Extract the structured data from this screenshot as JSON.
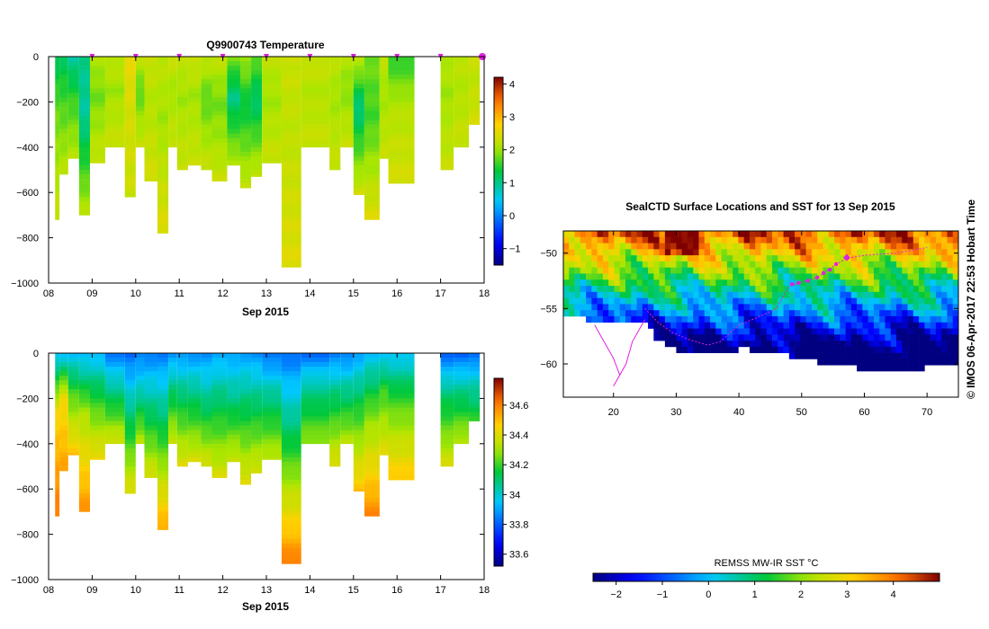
{
  "colors": {
    "marker": "#e020e0",
    "track": "#e020e0",
    "land": "#ffffff",
    "axis": "#000000"
  },
  "credit": "© IMOS 06-Apr-2017 22:53 Hobart Time",
  "chart_data": [
    {
      "id": "temperature",
      "type": "heatmap",
      "title": "Q9900743  Temperature",
      "xlabel": "Sep 2015",
      "ylabel": "",
      "xlim": [
        8,
        18
      ],
      "ylim": [
        -1000,
        0
      ],
      "xticks": [
        "08",
        "09",
        "10",
        "11",
        "12",
        "13",
        "14",
        "15",
        "16",
        "17",
        "18"
      ],
      "yticks": [
        0,
        -200,
        -400,
        -600,
        -800,
        -1000
      ],
      "colorbar": {
        "min": -1.5,
        "max": 4.2,
        "ticks": [
          4,
          3,
          2,
          1,
          0,
          -1
        ]
      },
      "markers_x": [
        9.0,
        10.0,
        11.0,
        12.0,
        13.0,
        14.0,
        15.0,
        16.0,
        17.0,
        18.0
      ],
      "profiles": [
        {
          "x0": 8.15,
          "x1": 8.25,
          "depth": 720,
          "surface": 1.2,
          "mid": 1.8,
          "deep": 2.3
        },
        {
          "x0": 8.25,
          "x1": 8.45,
          "depth": 520,
          "surface": 1.2,
          "mid": 1.6,
          "deep": 2.2
        },
        {
          "x0": 8.45,
          "x1": 8.7,
          "depth": 450,
          "surface": 0.9,
          "mid": 1.5,
          "deep": 2.2
        },
        {
          "x0": 8.7,
          "x1": 8.95,
          "depth": 700,
          "surface": 1.0,
          "mid": 0.9,
          "deep": 2.2
        },
        {
          "x0": 8.95,
          "x1": 9.3,
          "depth": 470,
          "surface": 2.1,
          "mid": 1.8,
          "deep": 2.3
        },
        {
          "x0": 9.3,
          "x1": 9.75,
          "depth": 400,
          "surface": 2.2,
          "mid": 2.0,
          "deep": 2.3
        },
        {
          "x0": 9.75,
          "x1": 10.0,
          "depth": 620,
          "surface": 2.6,
          "mid": 2.4,
          "deep": 2.3
        },
        {
          "x0": 10.0,
          "x1": 10.2,
          "depth": 400,
          "surface": 2.2,
          "mid": 1.7,
          "deep": 2.3
        },
        {
          "x0": 10.2,
          "x1": 10.5,
          "depth": 550,
          "surface": 2.3,
          "mid": 2.1,
          "deep": 2.4
        },
        {
          "x0": 10.5,
          "x1": 10.75,
          "depth": 780,
          "surface": 2.2,
          "mid": 2.0,
          "deep": 2.5
        },
        {
          "x0": 10.75,
          "x1": 10.95,
          "depth": 400,
          "surface": 2.3,
          "mid": 2.0,
          "deep": 2.3
        },
        {
          "x0": 10.95,
          "x1": 11.2,
          "depth": 500,
          "surface": 2.2,
          "mid": 2.0,
          "deep": 2.3
        },
        {
          "x0": 11.2,
          "x1": 11.5,
          "depth": 480,
          "surface": 2.3,
          "mid": 2.0,
          "deep": 2.3
        },
        {
          "x0": 11.5,
          "x1": 11.75,
          "depth": 500,
          "surface": 2.2,
          "mid": 1.7,
          "deep": 2.3
        },
        {
          "x0": 11.75,
          "x1": 12.1,
          "depth": 550,
          "surface": 2.2,
          "mid": 1.8,
          "deep": 2.3
        },
        {
          "x0": 12.1,
          "x1": 12.4,
          "depth": 480,
          "surface": 1.8,
          "mid": 1.0,
          "deep": 2.2
        },
        {
          "x0": 12.4,
          "x1": 12.65,
          "depth": 580,
          "surface": 2.0,
          "mid": 1.3,
          "deep": 2.3
        },
        {
          "x0": 12.65,
          "x1": 12.9,
          "depth": 530,
          "surface": 1.7,
          "mid": 1.1,
          "deep": 2.3
        },
        {
          "x0": 12.9,
          "x1": 13.35,
          "depth": 470,
          "surface": 2.2,
          "mid": 2.0,
          "deep": 2.3
        },
        {
          "x0": 13.35,
          "x1": 13.8,
          "depth": 930,
          "surface": 2.3,
          "mid": 2.2,
          "deep": 2.5
        },
        {
          "x0": 13.8,
          "x1": 14.45,
          "depth": 400,
          "surface": 2.3,
          "mid": 2.1,
          "deep": 2.3
        },
        {
          "x0": 14.45,
          "x1": 14.7,
          "depth": 500,
          "surface": 2.2,
          "mid": 2.0,
          "deep": 2.3
        },
        {
          "x0": 14.7,
          "x1": 15.0,
          "depth": 400,
          "surface": 2.1,
          "mid": 1.9,
          "deep": 2.3
        },
        {
          "x0": 15.0,
          "x1": 15.25,
          "depth": 610,
          "surface": 2.2,
          "mid": 1.0,
          "deep": 2.4
        },
        {
          "x0": 15.25,
          "x1": 15.6,
          "depth": 720,
          "surface": 1.8,
          "mid": 1.6,
          "deep": 2.5
        },
        {
          "x0": 15.6,
          "x1": 15.8,
          "depth": 450,
          "surface": 2.2,
          "mid": 2.0,
          "deep": 2.3
        },
        {
          "x0": 15.8,
          "x1": 16.4,
          "depth": 560,
          "surface": 1.5,
          "mid": 2.1,
          "deep": 2.4
        },
        {
          "x0": 17.0,
          "x1": 17.3,
          "depth": 500,
          "surface": 2.1,
          "mid": 2.0,
          "deep": 2.3
        },
        {
          "x0": 17.3,
          "x1": 17.65,
          "depth": 400,
          "surface": 2.2,
          "mid": 2.1,
          "deep": 2.3
        },
        {
          "x0": 17.65,
          "x1": 17.9,
          "depth": 300,
          "surface": 2.3,
          "mid": 2.2,
          "deep": 2.4
        }
      ]
    },
    {
      "id": "salinity",
      "type": "heatmap",
      "title": "",
      "xlabel": "Sep 2015",
      "ylabel": "",
      "xlim": [
        8,
        18
      ],
      "ylim": [
        -1000,
        0
      ],
      "xticks": [
        "08",
        "09",
        "10",
        "11",
        "12",
        "13",
        "14",
        "15",
        "16",
        "17",
        "18"
      ],
      "yticks": [
        0,
        -200,
        -400,
        -600,
        -800,
        -1000
      ],
      "colorbar": {
        "min": 33.52,
        "max": 34.78,
        "ticks": [
          34.6,
          34.4,
          34.2,
          34,
          33.8,
          33.6
        ]
      },
      "profiles": [
        {
          "x0": 8.15,
          "x1": 8.25,
          "depth": 720,
          "surface": 33.95,
          "mid": 34.45,
          "deep": 34.62
        },
        {
          "x0": 8.25,
          "x1": 8.45,
          "depth": 520,
          "surface": 33.95,
          "mid": 34.42,
          "deep": 34.55
        },
        {
          "x0": 8.45,
          "x1": 8.7,
          "depth": 450,
          "surface": 33.95,
          "mid": 34.2,
          "deep": 34.5
        },
        {
          "x0": 8.7,
          "x1": 8.95,
          "depth": 700,
          "surface": 33.93,
          "mid": 34.3,
          "deep": 34.58
        },
        {
          "x0": 8.95,
          "x1": 9.3,
          "depth": 470,
          "surface": 33.93,
          "mid": 34.15,
          "deep": 34.45
        },
        {
          "x0": 9.3,
          "x1": 9.75,
          "depth": 400,
          "surface": 33.85,
          "mid": 34.05,
          "deep": 34.4
        },
        {
          "x0": 9.75,
          "x1": 10.0,
          "depth": 620,
          "surface": 33.82,
          "mid": 34.05,
          "deep": 34.42
        },
        {
          "x0": 10.0,
          "x1": 10.2,
          "depth": 400,
          "surface": 33.85,
          "mid": 34.0,
          "deep": 34.35
        },
        {
          "x0": 10.2,
          "x1": 10.5,
          "depth": 550,
          "surface": 33.85,
          "mid": 34.05,
          "deep": 34.4
        },
        {
          "x0": 10.5,
          "x1": 10.75,
          "depth": 780,
          "surface": 33.85,
          "mid": 34.1,
          "deep": 34.55
        },
        {
          "x0": 10.75,
          "x1": 10.95,
          "depth": 400,
          "surface": 33.88,
          "mid": 34.08,
          "deep": 34.38
        },
        {
          "x0": 10.95,
          "x1": 11.2,
          "depth": 500,
          "surface": 33.88,
          "mid": 34.1,
          "deep": 34.42
        },
        {
          "x0": 11.2,
          "x1": 11.5,
          "depth": 480,
          "surface": 33.88,
          "mid": 34.08,
          "deep": 34.4
        },
        {
          "x0": 11.5,
          "x1": 11.75,
          "depth": 500,
          "surface": 33.88,
          "mid": 34.05,
          "deep": 34.4
        },
        {
          "x0": 11.75,
          "x1": 12.1,
          "depth": 550,
          "surface": 33.9,
          "mid": 34.1,
          "deep": 34.4
        },
        {
          "x0": 12.1,
          "x1": 12.4,
          "depth": 480,
          "surface": 33.9,
          "mid": 34.05,
          "deep": 34.38
        },
        {
          "x0": 12.4,
          "x1": 12.65,
          "depth": 580,
          "surface": 33.9,
          "mid": 34.1,
          "deep": 34.42
        },
        {
          "x0": 12.65,
          "x1": 12.9,
          "depth": 530,
          "surface": 33.88,
          "mid": 34.08,
          "deep": 34.4
        },
        {
          "x0": 12.9,
          "x1": 13.35,
          "depth": 470,
          "surface": 33.83,
          "mid": 34.05,
          "deep": 34.35
        },
        {
          "x0": 13.35,
          "x1": 13.8,
          "depth": 930,
          "surface": 33.83,
          "mid": 34.1,
          "deep": 34.62
        },
        {
          "x0": 13.8,
          "x1": 14.45,
          "depth": 400,
          "surface": 33.83,
          "mid": 34.05,
          "deep": 34.3
        },
        {
          "x0": 14.45,
          "x1": 14.7,
          "depth": 500,
          "surface": 33.85,
          "mid": 34.1,
          "deep": 34.42
        },
        {
          "x0": 14.7,
          "x1": 15.0,
          "depth": 400,
          "surface": 33.85,
          "mid": 34.05,
          "deep": 34.35
        },
        {
          "x0": 15.0,
          "x1": 15.25,
          "depth": 610,
          "surface": 33.9,
          "mid": 34.15,
          "deep": 34.5
        },
        {
          "x0": 15.25,
          "x1": 15.6,
          "depth": 720,
          "surface": 33.95,
          "mid": 34.25,
          "deep": 34.6
        },
        {
          "x0": 15.6,
          "x1": 15.8,
          "depth": 450,
          "surface": 33.95,
          "mid": 34.2,
          "deep": 34.42
        },
        {
          "x0": 15.8,
          "x1": 16.4,
          "depth": 560,
          "surface": 33.95,
          "mid": 34.2,
          "deep": 34.5
        },
        {
          "x0": 17.0,
          "x1": 17.3,
          "depth": 500,
          "surface": 33.82,
          "mid": 34.1,
          "deep": 34.4
        },
        {
          "x0": 17.3,
          "x1": 17.65,
          "depth": 400,
          "surface": 33.82,
          "mid": 34.05,
          "deep": 34.35
        },
        {
          "x0": 17.65,
          "x1": 17.9,
          "depth": 300,
          "surface": 33.82,
          "mid": 34.0,
          "deep": 34.2
        }
      ]
    },
    {
      "id": "sst-map",
      "type": "heatmap",
      "title": "SealCTD Surface Locations and SST for 13 Sep 2015",
      "xlabel": "",
      "ylabel": "",
      "xlim": [
        12,
        75
      ],
      "ylim": [
        -63,
        -48
      ],
      "xticks": [
        20,
        30,
        40,
        50,
        60,
        70
      ],
      "yticks": [
        -50,
        -55,
        -60
      ],
      "colorbar": {
        "label": "REMSS MW-IR SST °C",
        "min": -2.5,
        "max": 5,
        "ticks": [
          -2,
          -1,
          0,
          1,
          2,
          3,
          4
        ]
      },
      "ice_edge": [
        [
          12,
          -55.5
        ],
        [
          17,
          -55.8
        ],
        [
          22,
          -55.8
        ],
        [
          25,
          -55.8
        ],
        [
          26,
          -57.5
        ],
        [
          30,
          -58.6
        ],
        [
          35,
          -59.0
        ],
        [
          40,
          -58.4
        ],
        [
          45,
          -58.7
        ],
        [
          50,
          -59.4
        ],
        [
          55,
          -59.7
        ],
        [
          60,
          -60.3
        ],
        [
          65,
          -60.5
        ],
        [
          70,
          -60.0
        ],
        [
          75,
          -59.5
        ]
      ],
      "seal_track": [
        [
          25,
          -55
        ],
        [
          27,
          -56.2
        ],
        [
          29.5,
          -57.2
        ],
        [
          32,
          -57.8
        ],
        [
          35,
          -58.3
        ],
        [
          37,
          -58
        ],
        [
          40,
          -56.5
        ],
        [
          43,
          -55.8
        ],
        [
          46,
          -55
        ],
        [
          48,
          -53
        ],
        [
          50,
          -52.6
        ],
        [
          52.5,
          -52.2
        ],
        [
          55,
          -51.2
        ],
        [
          57,
          -50.5
        ],
        [
          60,
          -50.2
        ],
        [
          65,
          -50
        ],
        [
          70,
          -49.5
        ]
      ],
      "antarctic_track": [
        [
          17,
          -56.5
        ],
        [
          18,
          -57.5
        ],
        [
          19,
          -58.5
        ],
        [
          20,
          -59.5
        ],
        [
          21,
          -61
        ],
        [
          20,
          -62
        ],
        [
          22,
          -60
        ],
        [
          23,
          -58
        ],
        [
          24,
          -57
        ],
        [
          25,
          -56
        ]
      ],
      "surface_fixes": [
        [
          48.5,
          -52.8
        ],
        [
          49.5,
          -52.7
        ],
        [
          51,
          -52.5
        ],
        [
          52.5,
          -52.2
        ],
        [
          53.5,
          -51.8
        ],
        [
          54.5,
          -51.5
        ],
        [
          55.5,
          -51.0
        ],
        [
          57.2,
          -50.4
        ]
      ]
    }
  ]
}
